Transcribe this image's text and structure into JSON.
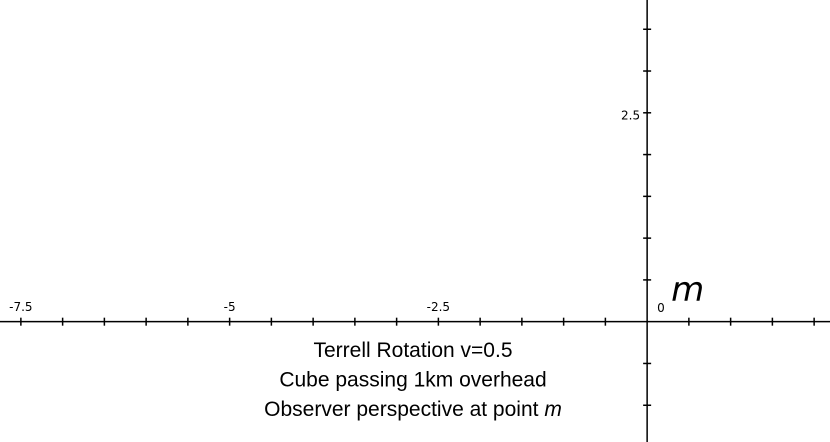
{
  "chart_data": {
    "type": "axes",
    "xlim": [
      -7.75,
      2.19
    ],
    "ylim": [
      -1.44,
      3.85
    ],
    "xticks": [
      -7.5,
      -5,
      -2.5,
      0
    ],
    "yticks": [
      2.5
    ],
    "x_minor_ticks": [
      -7.5,
      -7,
      -6.5,
      -6,
      -5.5,
      -5,
      -4.5,
      -4,
      -3.5,
      -3,
      -2.5,
      -2,
      -1.5,
      -1,
      -0.5,
      0.5,
      1,
      1.5,
      2
    ],
    "y_minor_ticks": [
      -1,
      -0.5,
      0.5,
      1,
      1.5,
      2,
      2.5,
      3,
      3.5
    ],
    "point": {
      "x": 0,
      "y": 0,
      "label": "m"
    },
    "annotation_lines": [
      {
        "text": "Terrell Rotation v=0.5"
      },
      {
        "text": "Cube passing 1km overhead"
      },
      {
        "text": "Observer perspective at point",
        "italic": "m"
      }
    ]
  }
}
